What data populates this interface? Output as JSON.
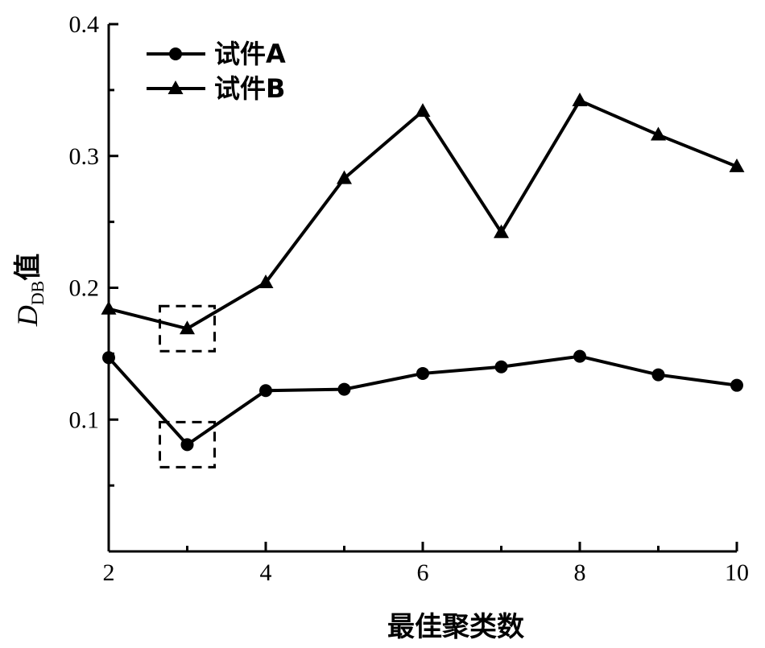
{
  "chart_data": {
    "type": "line",
    "x": [
      2,
      3,
      4,
      5,
      6,
      7,
      8,
      9,
      10
    ],
    "xlabel": "最佳聚类数",
    "ylabel": {
      "main": "D",
      "sub": "DB",
      "suffix": "值"
    },
    "xlim": [
      2,
      10
    ],
    "ylim": [
      0,
      0.4
    ],
    "xticks": [
      2,
      4,
      6,
      8,
      10
    ],
    "xtick_labels": [
      "2",
      "4",
      "6",
      "8",
      "10"
    ],
    "yticks": [
      0.1,
      0.2,
      0.3,
      0.4
    ],
    "ytick_labels": [
      "0.1",
      "0.2",
      "0.3",
      "0.4"
    ],
    "grid": false,
    "legend_position": "top-left",
    "series": [
      {
        "name": "试件A",
        "marker": "circle",
        "color": "#000000",
        "values": [
          0.147,
          0.081,
          0.122,
          0.123,
          0.135,
          0.14,
          0.148,
          0.134,
          0.126
        ]
      },
      {
        "name": "试件B",
        "marker": "triangle",
        "color": "#000000",
        "values": [
          0.184,
          0.169,
          0.204,
          0.283,
          0.334,
          0.242,
          0.342,
          0.316,
          0.292
        ]
      }
    ],
    "annotations": [
      {
        "type": "dashed-box",
        "x": 3,
        "series": "试件A"
      },
      {
        "type": "dashed-box",
        "x": 3,
        "series": "试件B"
      }
    ]
  }
}
